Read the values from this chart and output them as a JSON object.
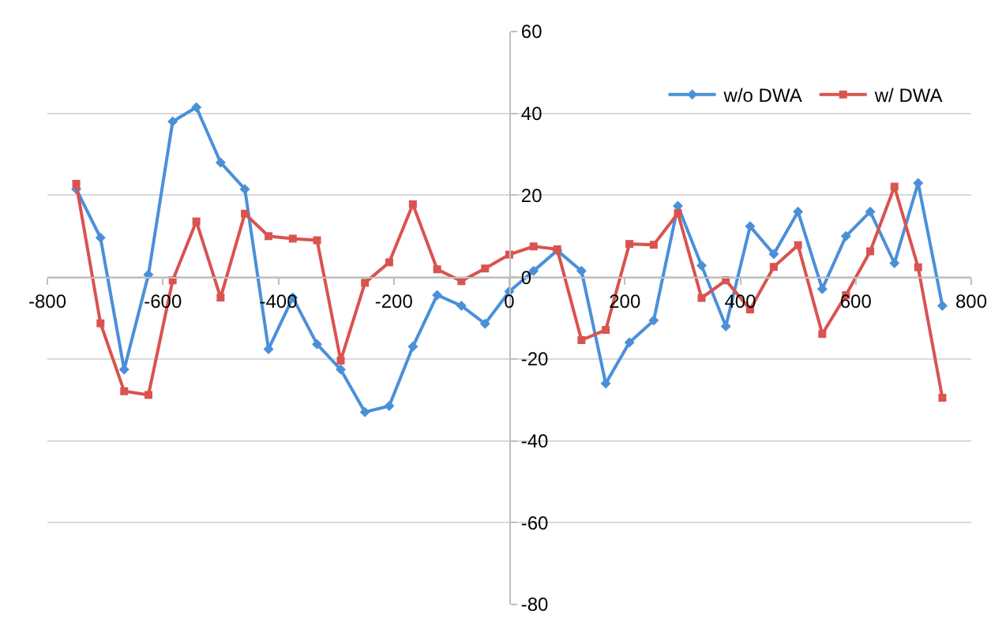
{
  "chart_data": {
    "type": "line",
    "x": [
      -750,
      -708,
      -667,
      -625,
      -583,
      -542,
      -500,
      -458,
      -417,
      -375,
      -333,
      -292,
      -250,
      -208,
      -167,
      -125,
      -83,
      -42,
      0,
      42,
      83,
      125,
      167,
      208,
      250,
      292,
      333,
      375,
      417,
      458,
      500,
      542,
      583,
      625,
      667,
      708,
      750
    ],
    "series": [
      {
        "name": "w/o DWA",
        "color": "#4a90d9",
        "marker": "diamond",
        "values": [
          21.5,
          9.6,
          -22.6,
          0.6,
          38,
          41.5,
          28,
          21.5,
          -17.6,
          -5,
          -16.4,
          -22.6,
          -33,
          -31.5,
          -17,
          -4.4,
          -7,
          -11.4,
          -3.5,
          1.5,
          6.5,
          1.5,
          -26,
          -16,
          -10.6,
          17.4,
          2.8,
          -12,
          12.4,
          5.6,
          16,
          -2.9,
          10,
          16,
          3.4,
          23,
          -7
        ]
      },
      {
        "name": "w/ DWA",
        "color": "#d9534f",
        "marker": "square",
        "values": [
          22.8,
          -11.3,
          -27.9,
          -28.8,
          -0.8,
          13.6,
          -5,
          15.5,
          10,
          9.4,
          9,
          -20.4,
          -1.4,
          3.6,
          17.8,
          1.9,
          -1,
          2.1,
          5.5,
          7.5,
          6.8,
          -15.4,
          -12.9,
          8.1,
          7.9,
          15.6,
          -5.1,
          -0.8,
          -7.9,
          2.5,
          7.8,
          -13.9,
          -4.4,
          6.3,
          22.1,
          2.4,
          -29.5
        ]
      }
    ],
    "xlim": [
      -800,
      800
    ],
    "xticks": [
      -800,
      -600,
      -400,
      -200,
      0,
      200,
      400,
      600,
      800
    ],
    "ylim": [
      -80,
      60
    ],
    "yticks": [
      -80,
      -60,
      -40,
      -20,
      0,
      20,
      40,
      60
    ],
    "grid": "y",
    "legend": "top right",
    "line_style": "solid"
  }
}
